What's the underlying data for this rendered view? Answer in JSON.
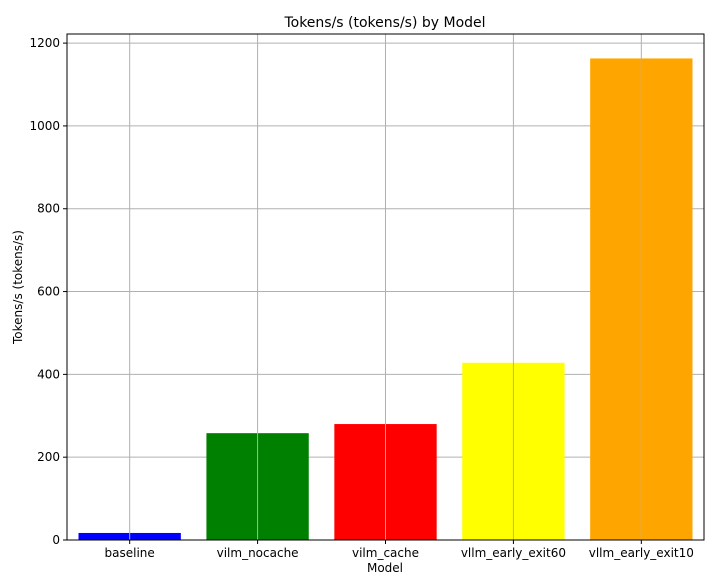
{
  "chart_data": {
    "type": "bar",
    "title": "Tokens/s (tokens/s) by Model",
    "xlabel": "Model",
    "ylabel": "Tokens/s (tokens/s)",
    "categories": [
      "baseline",
      "vilm_nocache",
      "vilm_cache",
      "vllm_early_exit60",
      "vllm_early_exit10"
    ],
    "values": [
      17,
      258,
      280,
      428,
      1163
    ],
    "colors": [
      "#0000ff",
      "#008000",
      "#ff0000",
      "#ffff00",
      "#ffa500"
    ],
    "ylim": [
      0,
      1222
    ],
    "yticks": [
      0,
      200,
      400,
      600,
      800,
      1000,
      1200
    ],
    "grid": true
  }
}
